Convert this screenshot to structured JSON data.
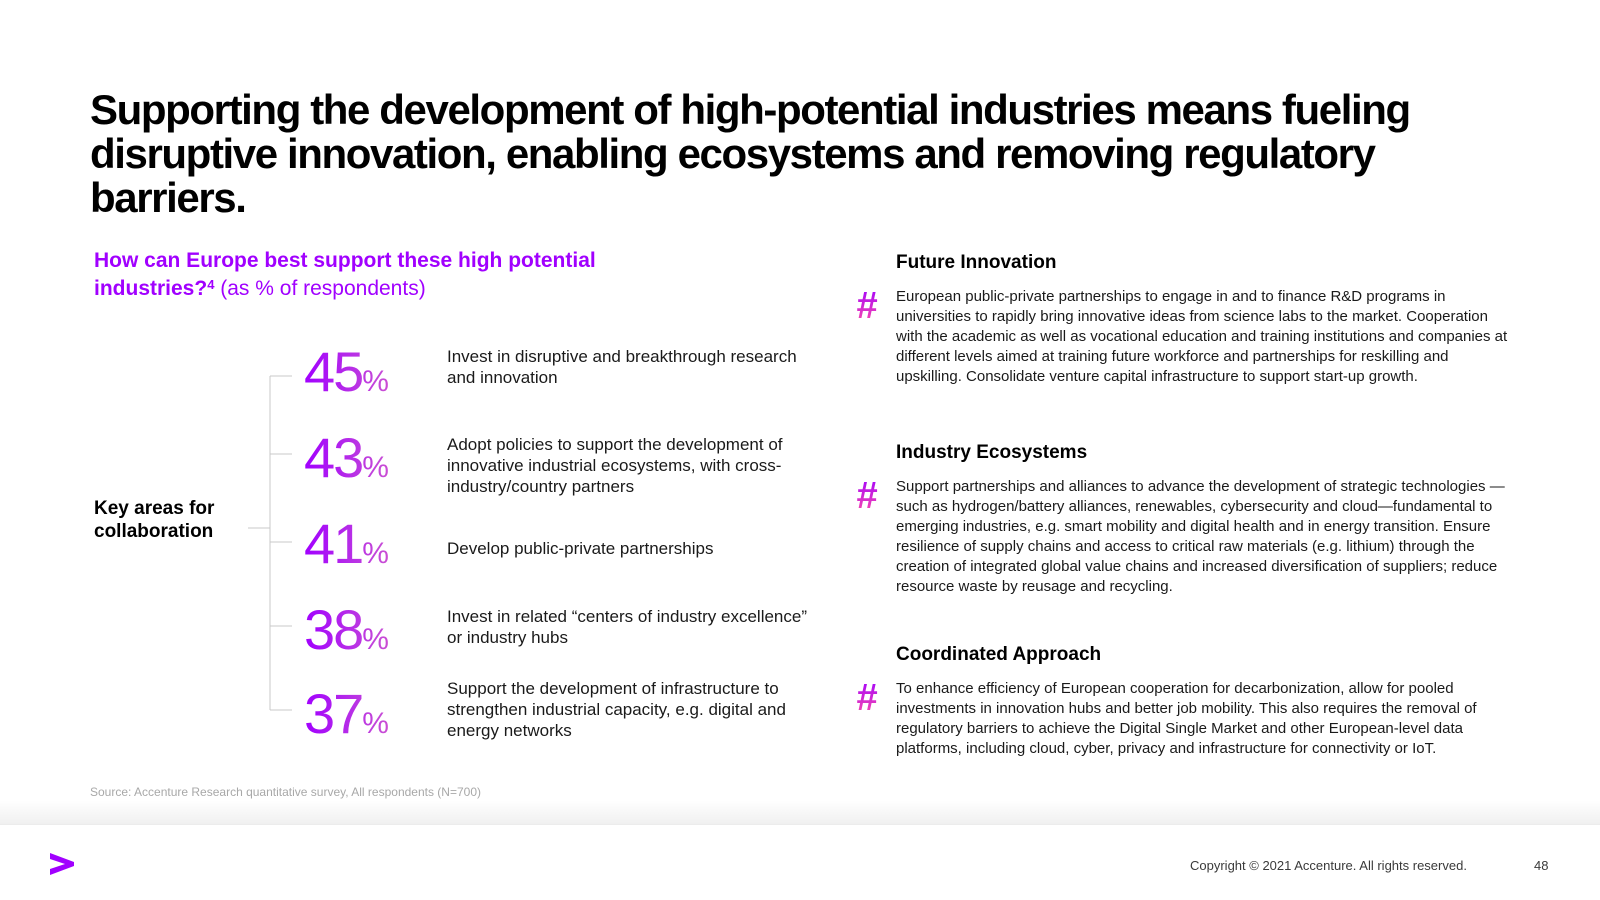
{
  "headline": "Supporting the development of high-potential industries means fueling disruptive innovation, enabling ecosystems and removing regulatory barriers.",
  "question": {
    "bold_text": "How can Europe best support these high potential industries?",
    "footnote": "4",
    "light_text": " (as % of respondents)"
  },
  "key_areas_label": "Key areas for collaboration",
  "stats": [
    {
      "value": "45",
      "unit": "%",
      "label": "Invest in disruptive and breakthrough research and innovation"
    },
    {
      "value": "43",
      "unit": "%",
      "label": "Adopt policies to support the development of innovative industrial ecosystems, with cross-industry/country partners"
    },
    {
      "value": "41",
      "unit": "%",
      "label": "Develop public-private partnerships"
    },
    {
      "value": "38",
      "unit": "%",
      "label": "Invest in related “centers of industry excellence” or industry hubs"
    },
    {
      "value": "37",
      "unit": "%",
      "label": "Support the development of infrastructure to strengthen industrial capacity, e.g. digital and energy networks"
    }
  ],
  "source": "Source: Accenture Research quantitative survey, All respondents (N=700)",
  "sections": [
    {
      "icon": "hash-icon",
      "symbol": "#",
      "title": "Future Innovation",
      "body": "European public-private partnerships to engage in and to finance R&D programs in universities to rapidly bring innovative ideas from science labs to the market. Cooperation with the academic as well as vocational education and training institutions and companies at different levels aimed at training future workforce and partnerships for reskilling and upskilling. Consolidate venture capital infrastructure to support start-up growth."
    },
    {
      "icon": "hash-icon",
      "symbol": "#",
      "title": "Industry Ecosystems",
      "body": "Support partnerships and alliances to advance the development of strategic technologies — such as hydrogen/battery alliances, renewables, cybersecurity and cloud—fundamental to emerging industries, e.g. smart mobility and digital health and in energy transition. Ensure resilience of supply chains and access to critical raw materials (e.g. lithium) through the creation of integrated global value chains and increased diversification of suppliers; reduce resource waste by reusage and recycling."
    },
    {
      "icon": "hash-icon",
      "symbol": "#",
      "title": "Coordinated Approach",
      "body": "To enhance efficiency of European cooperation for decarbonization, allow for pooled investments in innovation hubs and better job mobility. This also requires the removal of regulatory barriers to achieve the Digital  Single Market and other European-level data platforms, including cloud, cyber, privacy and infrastructure for connectivity or IoT."
    }
  ],
  "footer": {
    "logo_icon": "accenture-chevron-icon",
    "copyright": "Copyright © 2021 Accenture. All rights reserved.",
    "page_number": "48"
  },
  "colors": {
    "accent": "#a100ff",
    "accent_pink": "#ff5ab0",
    "source_gray": "#a8a8a8"
  }
}
